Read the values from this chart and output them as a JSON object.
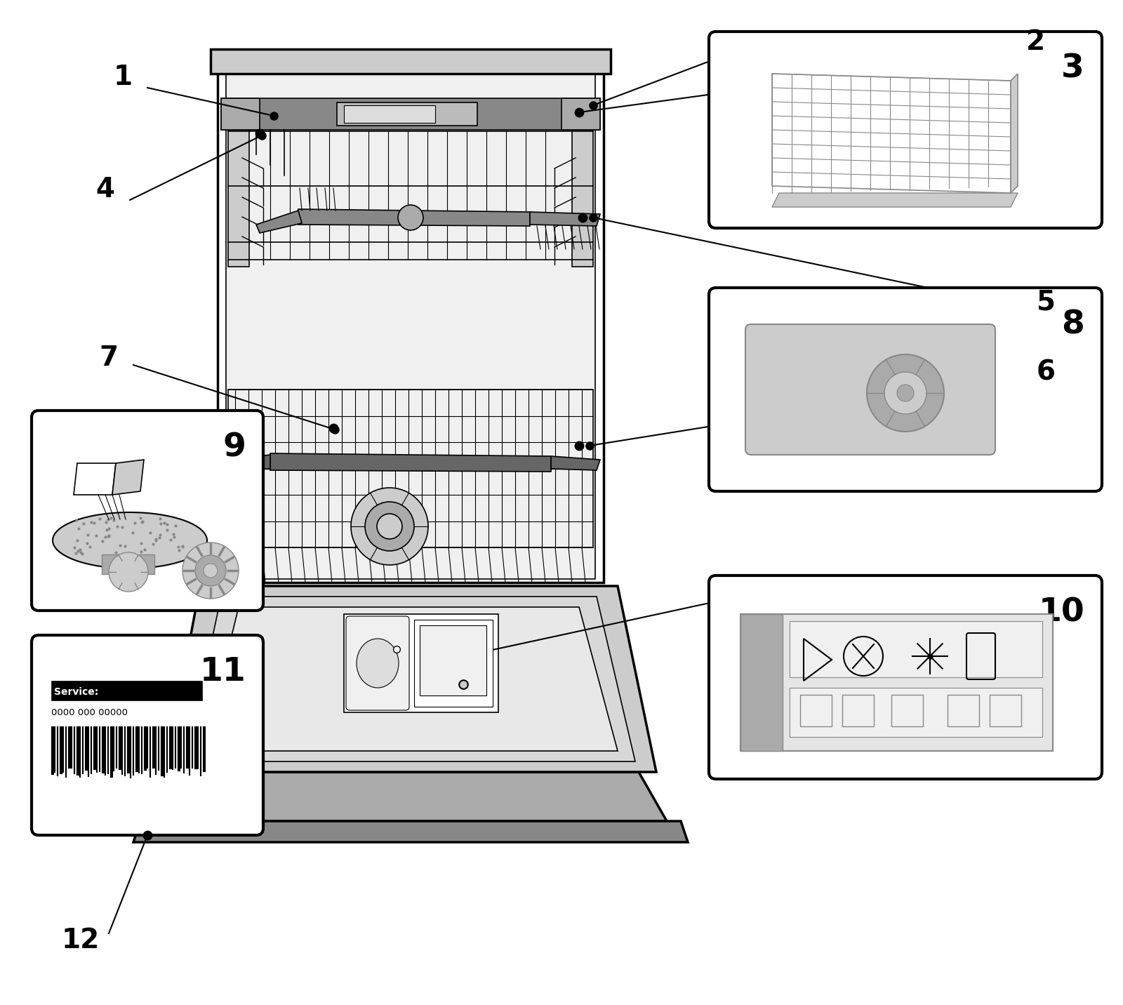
{
  "bg": "#ffffff",
  "lc": "#000000",
  "gl": "#cccccc",
  "gm": "#aaaaaa",
  "gd": "#888888",
  "gdd": "#666666",
  "fig_w": 16.0,
  "fig_h": 14.32,
  "dpi": 100
}
